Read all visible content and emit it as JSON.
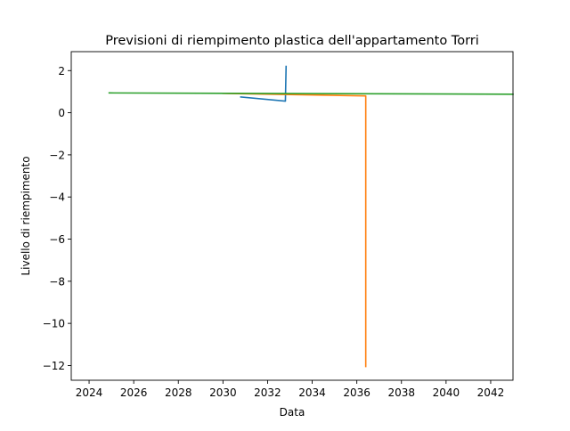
{
  "chart_data": {
    "type": "line",
    "title": "Previsioni di riempimento plastica dell'appartamento Torri",
    "xlabel": "Data",
    "ylabel": "Livello di riempimento",
    "x_axis_kind": "date (years)",
    "xlim": [
      2023.2,
      2043.0
    ],
    "ylim": [
      -12.7,
      2.9
    ],
    "x_ticks": [
      2024,
      2026,
      2028,
      2030,
      2032,
      2034,
      2036,
      2038,
      2040,
      2042
    ],
    "x_tick_labels": [
      "2024",
      "2026",
      "2028",
      "2030",
      "2032",
      "2034",
      "2036",
      "2038",
      "2040",
      "2042"
    ],
    "y_ticks": [
      2,
      0,
      -2,
      -4,
      -6,
      -8,
      -10,
      -12
    ],
    "y_tick_labels": [
      "2",
      "0",
      "−2",
      "−4",
      "−6",
      "−8",
      "−10",
      "−12"
    ],
    "grid": false,
    "legend": "none",
    "series": [
      {
        "color": "#1f77b4",
        "x": [
          2030.8,
          2032.8,
          2032.8,
          2032.83
        ],
        "y": [
          0.75,
          0.55,
          0.6,
          2.2
        ]
      },
      {
        "color": "#ff7f0e",
        "x": [
          2030.0,
          2036.4,
          2036.4
        ],
        "y": [
          0.92,
          0.8,
          -12.05
        ]
      },
      {
        "color": "#2ca02c",
        "x": [
          2024.9,
          2043.0
        ],
        "y": [
          0.94,
          0.88
        ]
      }
    ]
  }
}
